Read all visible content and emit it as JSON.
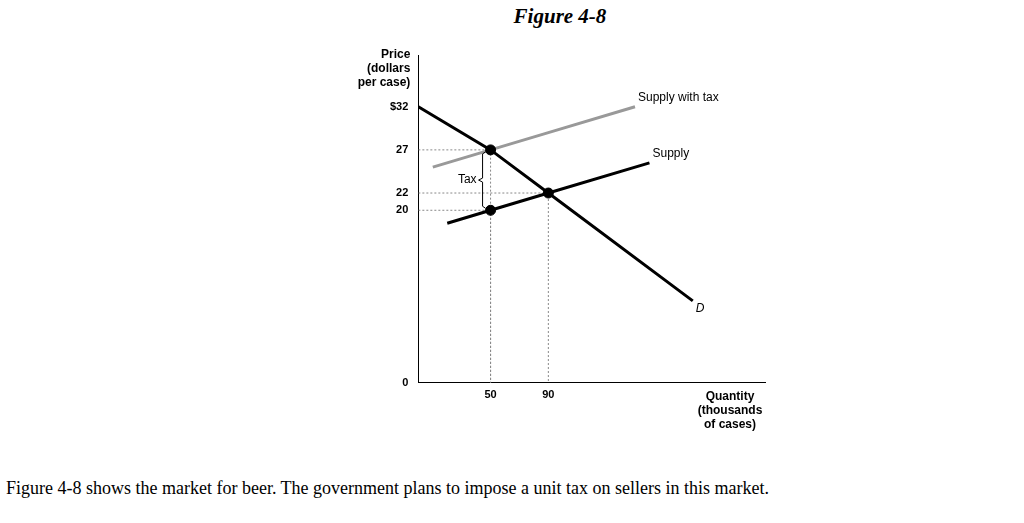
{
  "chart_data": {
    "type": "line",
    "title": "Figure 4-8",
    "y_label": [
      "Price",
      "(dollars",
      "per case)"
    ],
    "x_label": [
      "Quantity",
      "(thousands",
      "of cases)"
    ],
    "caption": "Figure 4-8 shows the market for beer.  The government plans to impose a unit tax on sellers in this market.",
    "xlim": [
      0,
      240
    ],
    "xticks": [
      50,
      90
    ],
    "ylim": [
      0,
      38
    ],
    "yticks": [
      0,
      20,
      22,
      27,
      {
        "value": 32,
        "label": "$32"
      }
    ],
    "grid": false,
    "series": [
      {
        "name": "Supply with tax",
        "color": "#999999",
        "x": [
          10,
          50,
          90,
          150
        ],
        "values": [
          25,
          27,
          29,
          32
        ]
      },
      {
        "name": "Supply",
        "color": "#000000",
        "x": [
          20,
          50,
          90,
          160
        ],
        "values": [
          18.5,
          20,
          22,
          25.5
        ]
      },
      {
        "name": "D",
        "color": "#000000",
        "x": [
          0,
          50,
          90,
          190
        ],
        "values": [
          32,
          27,
          22,
          9.5
        ]
      }
    ],
    "points": [
      {
        "x": 50,
        "y": 27
      },
      {
        "x": 90,
        "y": 22
      },
      {
        "x": 50,
        "y": 20
      }
    ],
    "annotations": [
      {
        "text": "Tax",
        "x": 50,
        "y_from": 20,
        "y_to": 27
      }
    ]
  }
}
